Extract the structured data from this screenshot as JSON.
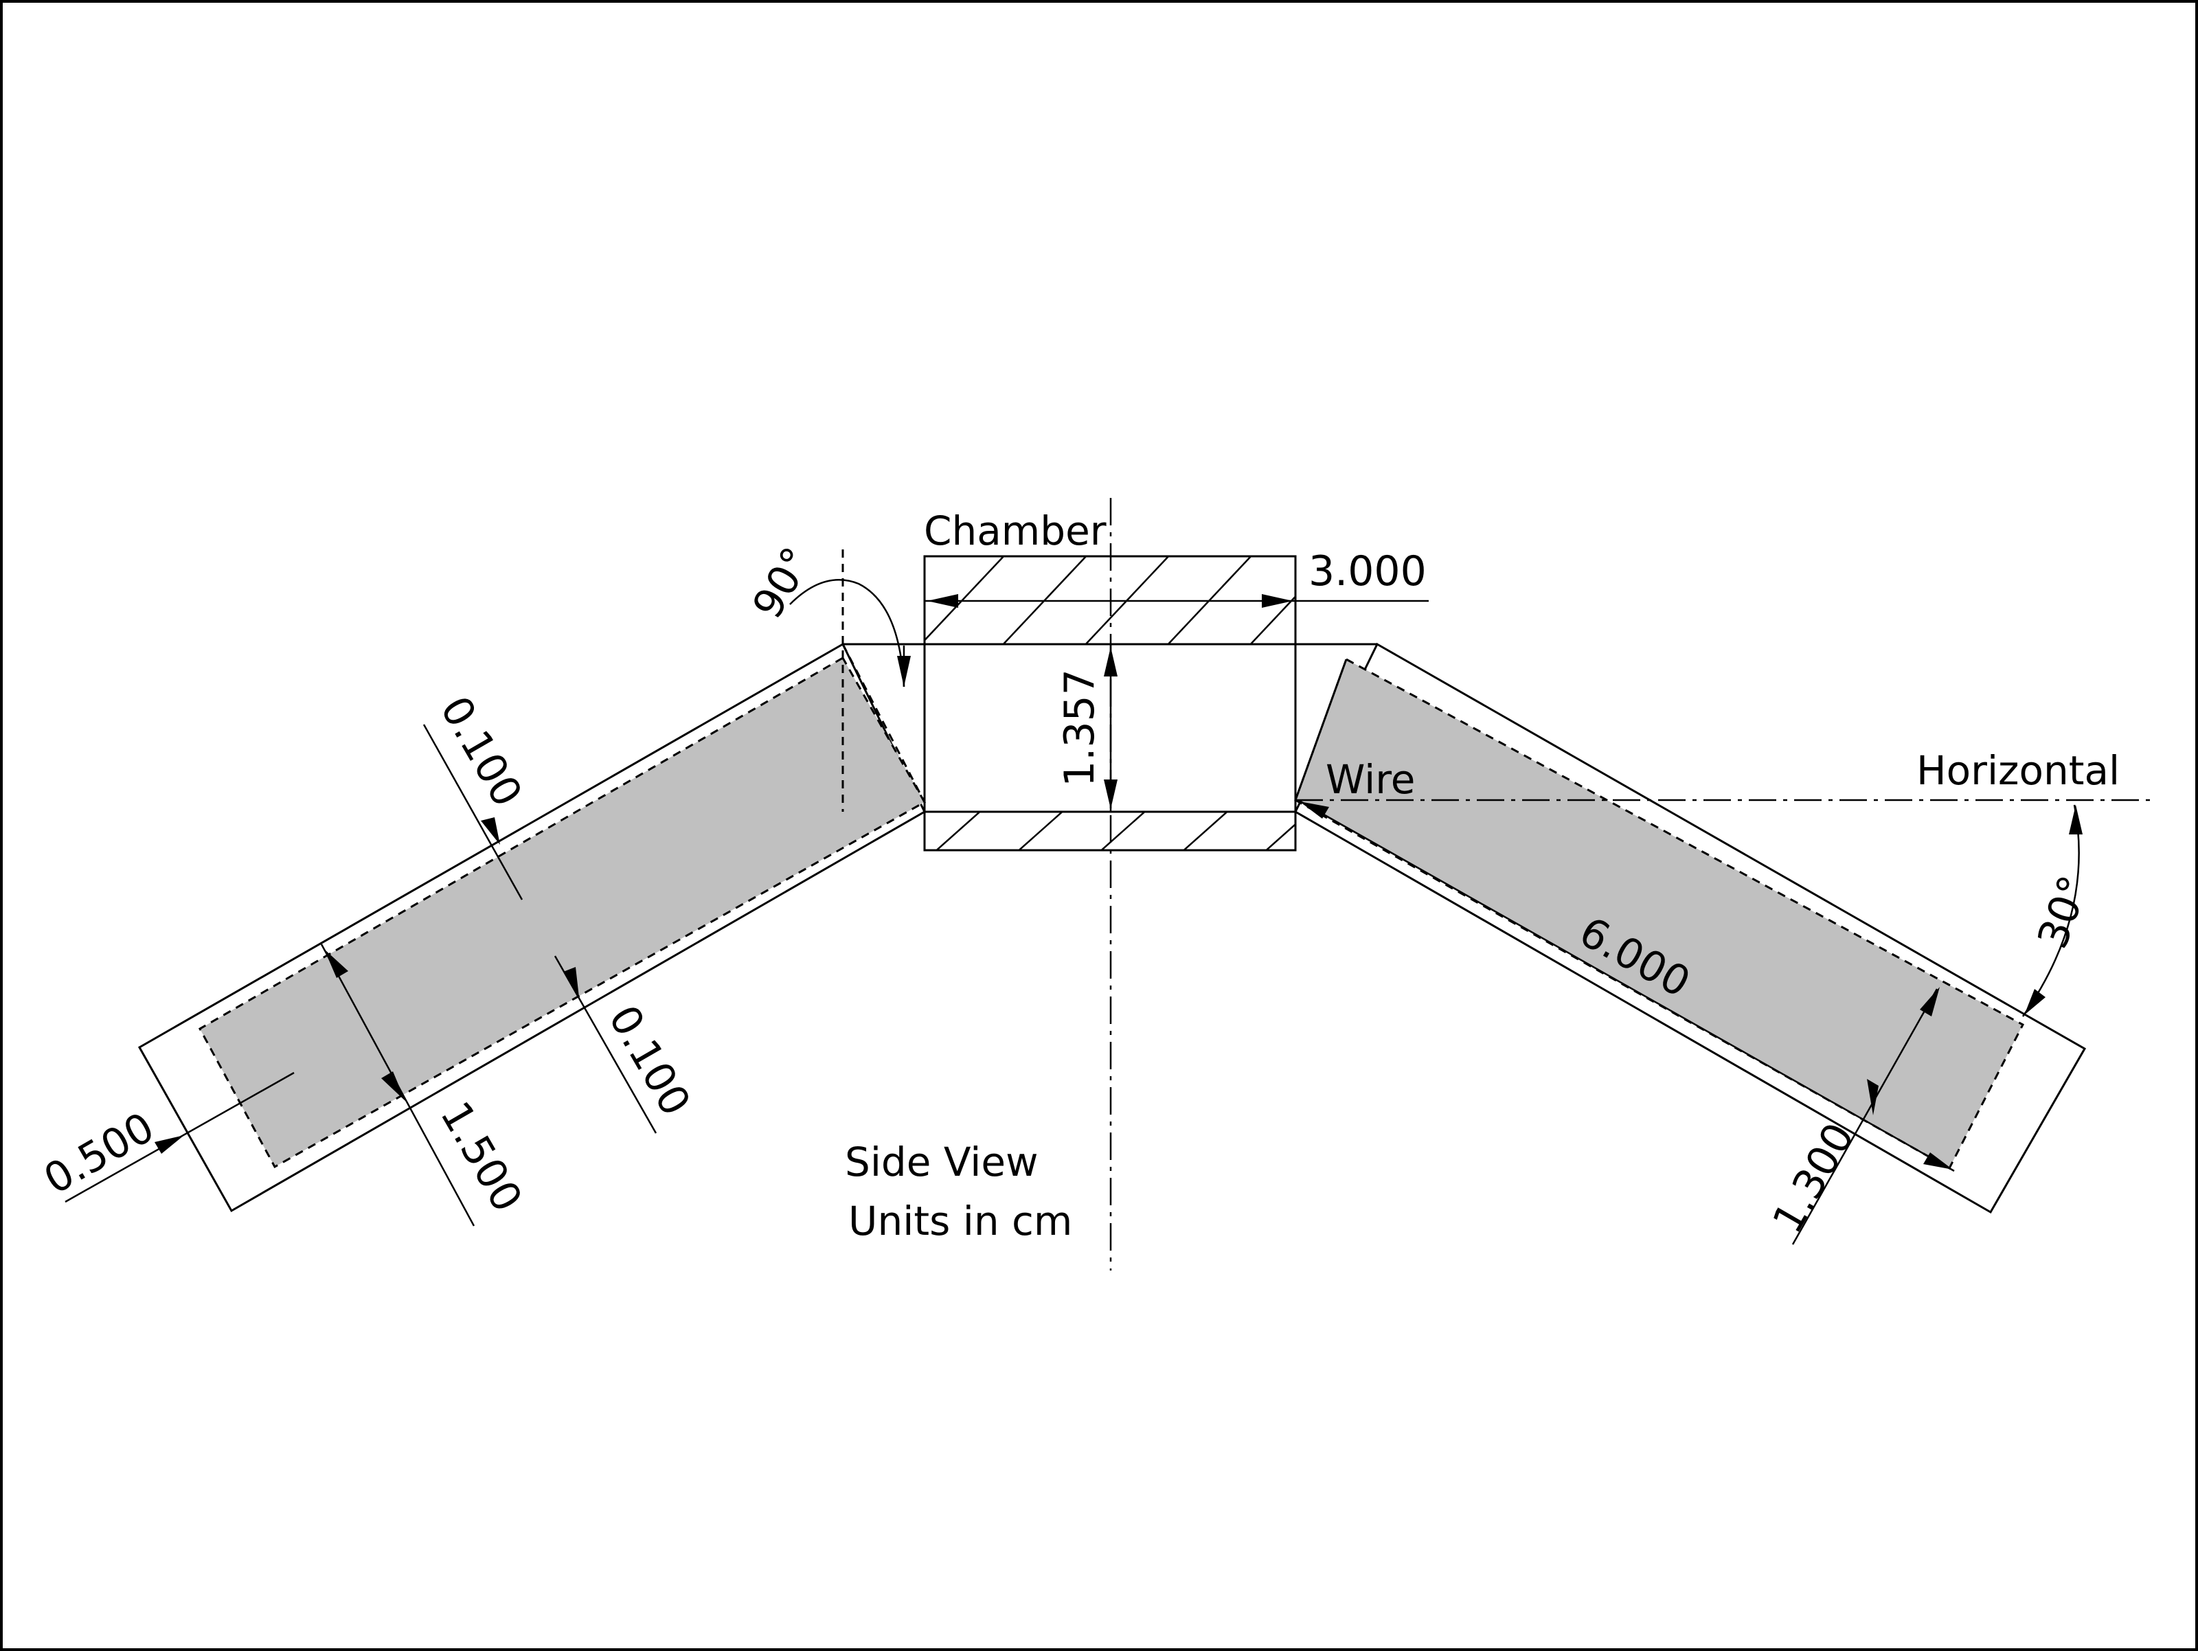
{
  "labels": {
    "chamber": "Chamber",
    "wire": "Wire",
    "horizontal": "Horizontal",
    "view_title": "Side View",
    "units": "Units in cm"
  },
  "dimensions": {
    "chamber_width": "3.000",
    "chamber_height": "1.357",
    "left_gap_top": "0.100",
    "left_gap_bottom": "0.100",
    "left_width": "1.500",
    "left_end": "0.500",
    "right_length": "6.000",
    "right_width": "1.300",
    "angle_90": "90°",
    "angle_30": "30°"
  }
}
